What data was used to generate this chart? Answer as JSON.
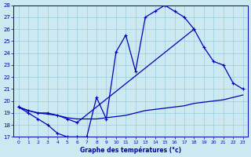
{
  "title": "Graphe des températures (°c)",
  "xlim": [
    -0.5,
    23.5
  ],
  "ylim": [
    17,
    28
  ],
  "yticks": [
    17,
    18,
    19,
    20,
    21,
    22,
    23,
    24,
    25,
    26,
    27,
    28
  ],
  "xticks": [
    0,
    1,
    2,
    3,
    4,
    5,
    6,
    7,
    8,
    9,
    10,
    11,
    12,
    13,
    14,
    15,
    16,
    17,
    18,
    19,
    20,
    21,
    22,
    23
  ],
  "bg_color": "#cce8f0",
  "line_color": "#0000bb",
  "grid_color": "#99cce0",
  "line1_x": [
    0,
    1,
    2,
    3,
    4,
    5,
    6,
    7,
    8,
    9,
    10,
    11,
    12,
    13,
    14,
    15,
    16,
    17,
    18
  ],
  "line1_y": [
    19.5,
    19.0,
    18.5,
    18.0,
    17.3,
    17.0,
    17.0,
    17.0,
    20.3,
    18.5,
    24.1,
    25.5,
    22.5,
    27.0,
    27.5,
    28.0,
    27.5,
    27.0,
    26.0
  ],
  "line2_x": [
    0,
    1,
    2,
    3,
    4,
    5,
    6,
    18,
    19,
    20,
    21,
    22,
    23
  ],
  "line2_y": [
    19.5,
    19.2,
    19.0,
    19.0,
    18.8,
    18.5,
    18.2,
    26.0,
    24.5,
    23.3,
    23.0,
    21.5,
    21.0
  ],
  "line3_x": [
    0,
    1,
    2,
    3,
    4,
    5,
    6,
    7,
    8,
    9,
    10,
    11,
    12,
    13,
    14,
    15,
    16,
    17,
    18,
    19,
    20,
    21,
    22,
    23
  ],
  "line3_y": [
    19.5,
    19.2,
    19.0,
    18.9,
    18.8,
    18.6,
    18.5,
    18.5,
    18.5,
    18.6,
    18.7,
    18.8,
    19.0,
    19.2,
    19.3,
    19.4,
    19.5,
    19.6,
    19.8,
    19.9,
    20.0,
    20.1,
    20.3,
    20.5
  ]
}
